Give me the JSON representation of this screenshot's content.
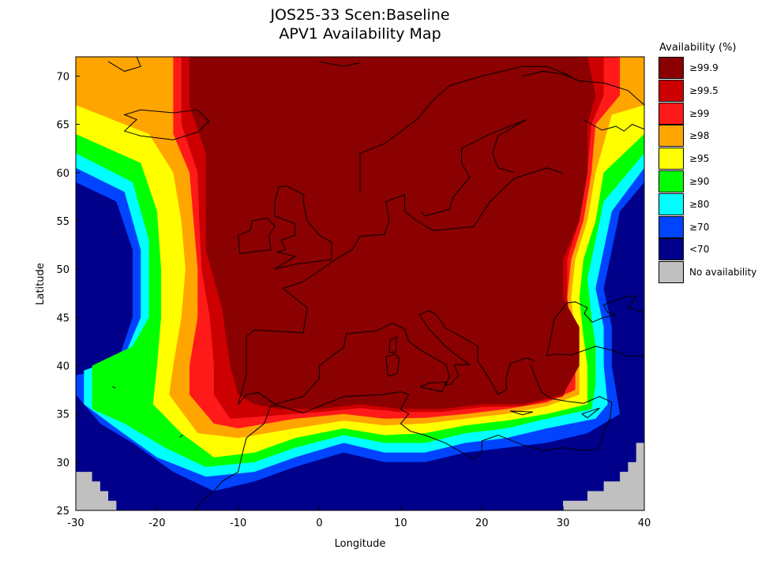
{
  "title_line1": "JOS25-33 Scen:Baseline",
  "title_line2": "APV1 Availability Map",
  "chart_data": {
    "type": "heatmap",
    "xlabel": "Longitude",
    "ylabel": "Latitude",
    "xlim": [
      -30,
      40
    ],
    "ylim": [
      25,
      72
    ],
    "x_ticks": [
      -30,
      -20,
      -10,
      0,
      10,
      20,
      30,
      40
    ],
    "y_ticks": [
      25,
      30,
      35,
      40,
      45,
      50,
      55,
      60,
      65,
      70
    ],
    "legend_title": "Availability (%)",
    "legend_placement": "right",
    "legend": [
      {
        "label": "≥99.9",
        "color": "#8b0000"
      },
      {
        "label": "≥99.5",
        "color": "#cc0000"
      },
      {
        "label": "≥99",
        "color": "#ff1a1a"
      },
      {
        "label": "≥98",
        "color": "#ffa500"
      },
      {
        "label": "≥95",
        "color": "#ffff00"
      },
      {
        "label": "≥90",
        "color": "#00ff00"
      },
      {
        "label": "≥80",
        "color": "#00ffff"
      },
      {
        "label": "≥70",
        "color": "#0044ff"
      },
      {
        "label": "<70",
        "color": "#00008b"
      },
      {
        "label": "No availability",
        "color": "#c0c0c0"
      }
    ],
    "core_region_polygon": [
      [
        -16,
        72
      ],
      [
        -16,
        67
      ],
      [
        -14,
        62
      ],
      [
        -14,
        57
      ],
      [
        -14,
        52
      ],
      [
        -12,
        46
      ],
      [
        -11,
        40
      ],
      [
        -10,
        37
      ],
      [
        -8,
        36
      ],
      [
        -5,
        35.5
      ],
      [
        0,
        35.5
      ],
      [
        5,
        36
      ],
      [
        10,
        35.5
      ],
      [
        15,
        35.5
      ],
      [
        20,
        36
      ],
      [
        25,
        36
      ],
      [
        30,
        37
      ],
      [
        32,
        40
      ],
      [
        32,
        44
      ],
      [
        30,
        47
      ],
      [
        30,
        51
      ],
      [
        32,
        55
      ],
      [
        33,
        60
      ],
      [
        33,
        65
      ],
      [
        34,
        68
      ],
      [
        33,
        72
      ]
    ],
    "contours": [
      {
        "level": "≥70",
        "polygon": [
          [
            -30,
            59
          ],
          [
            -25,
            57
          ],
          [
            -23,
            52
          ],
          [
            -23,
            45
          ],
          [
            -25,
            40
          ],
          [
            -30,
            39
          ],
          [
            -30,
            37
          ],
          [
            -27,
            34
          ],
          [
            -23,
            32
          ],
          [
            -18,
            29
          ],
          [
            -13,
            27
          ],
          [
            -8,
            28
          ],
          [
            -3,
            29.5
          ],
          [
            3,
            31
          ],
          [
            8,
            30
          ],
          [
            13,
            30
          ],
          [
            18,
            31
          ],
          [
            23,
            31.5
          ],
          [
            28,
            32
          ],
          [
            33,
            33
          ],
          [
            37,
            35
          ],
          [
            36,
            40
          ],
          [
            36,
            44
          ],
          [
            35,
            48
          ],
          [
            36,
            52
          ],
          [
            37,
            56
          ],
          [
            40,
            59
          ],
          [
            40,
            72
          ],
          [
            -30,
            72
          ]
        ]
      },
      {
        "level": "≥80",
        "polygon": [
          [
            -30,
            60.5
          ],
          [
            -24,
            58
          ],
          [
            -22,
            52
          ],
          [
            -22,
            45
          ],
          [
            -24,
            41
          ],
          [
            -29,
            39.5
          ],
          [
            -29,
            36
          ],
          [
            -25,
            33.5
          ],
          [
            -20,
            30.5
          ],
          [
            -14,
            28.5
          ],
          [
            -8,
            29
          ],
          [
            -3,
            30.5
          ],
          [
            3,
            32
          ],
          [
            8,
            31
          ],
          [
            13,
            31
          ],
          [
            18,
            32
          ],
          [
            23,
            32.5
          ],
          [
            28,
            33.5
          ],
          [
            34,
            34.5
          ],
          [
            35.5,
            36
          ],
          [
            35,
            40
          ],
          [
            35,
            44
          ],
          [
            34,
            48
          ],
          [
            35,
            52
          ],
          [
            36,
            56
          ],
          [
            40,
            60.5
          ],
          [
            40,
            72
          ],
          [
            -30,
            72
          ]
        ]
      },
      {
        "level": "≥90",
        "polygon": [
          [
            -30,
            62
          ],
          [
            -23,
            59
          ],
          [
            -21,
            53
          ],
          [
            -21,
            45
          ],
          [
            -23,
            42
          ],
          [
            -28,
            40
          ],
          [
            -28,
            35.5
          ],
          [
            -24,
            34
          ],
          [
            -19,
            31.5
          ],
          [
            -14,
            29.5
          ],
          [
            -8,
            30
          ],
          [
            -3,
            31.5
          ],
          [
            3,
            32.8
          ],
          [
            8,
            32
          ],
          [
            13,
            32
          ],
          [
            18,
            33
          ],
          [
            23,
            33.5
          ],
          [
            28,
            34.5
          ],
          [
            33.5,
            35.5
          ],
          [
            34,
            38
          ],
          [
            34,
            42
          ],
          [
            33.5,
            45
          ],
          [
            33,
            49
          ],
          [
            34,
            53
          ],
          [
            35,
            57
          ],
          [
            40,
            62
          ],
          [
            40,
            72
          ],
          [
            -30,
            72
          ]
        ]
      },
      {
        "level": "≥95",
        "polygon": [
          [
            -30,
            64
          ],
          [
            -22,
            61
          ],
          [
            -20,
            56
          ],
          [
            -19.5,
            50
          ],
          [
            -19.5,
            45
          ],
          [
            -20,
            40
          ],
          [
            -20.5,
            36
          ],
          [
            -17,
            33
          ],
          [
            -13,
            30.5
          ],
          [
            -8,
            31
          ],
          [
            -3,
            32.5
          ],
          [
            3,
            33.5
          ],
          [
            8,
            32.8
          ],
          [
            13,
            33
          ],
          [
            18,
            33.8
          ],
          [
            23,
            34.3
          ],
          [
            28,
            35
          ],
          [
            33,
            36
          ],
          [
            33,
            40
          ],
          [
            32.5,
            43
          ],
          [
            32,
            47
          ],
          [
            32.5,
            51
          ],
          [
            34,
            55
          ],
          [
            35,
            60
          ],
          [
            40,
            64
          ],
          [
            40,
            72
          ],
          [
            -30,
            72
          ]
        ]
      },
      {
        "level": "≥98",
        "polygon": [
          [
            -30,
            67
          ],
          [
            -21,
            64
          ],
          [
            -18,
            60
          ],
          [
            -17,
            55
          ],
          [
            -16.5,
            50
          ],
          [
            -17,
            45
          ],
          [
            -18,
            40
          ],
          [
            -18.5,
            37
          ],
          [
            -15,
            33
          ],
          [
            -10,
            32.5
          ],
          [
            -3,
            33.5
          ],
          [
            3,
            34.3
          ],
          [
            8,
            33.8
          ],
          [
            13,
            34
          ],
          [
            18,
            34.5
          ],
          [
            23,
            35
          ],
          [
            28,
            35.8
          ],
          [
            32,
            37
          ],
          [
            32,
            40
          ],
          [
            31.5,
            43
          ],
          [
            31,
            47
          ],
          [
            31.5,
            51
          ],
          [
            33,
            55
          ],
          [
            34,
            60
          ],
          [
            36,
            66
          ],
          [
            40,
            67
          ],
          [
            40,
            72
          ],
          [
            -30,
            72
          ]
        ]
      },
      {
        "level": "≥99",
        "polygon": [
          [
            -18,
            72
          ],
          [
            -18,
            64
          ],
          [
            -16,
            60
          ],
          [
            -15.5,
            55
          ],
          [
            -15,
            50
          ],
          [
            -15,
            45
          ],
          [
            -16,
            40
          ],
          [
            -16,
            37
          ],
          [
            -13,
            34
          ],
          [
            -10,
            33.5
          ],
          [
            -3,
            34.5
          ],
          [
            3,
            35
          ],
          [
            8,
            34.5
          ],
          [
            13,
            34.6
          ],
          [
            18,
            35
          ],
          [
            23,
            35.5
          ],
          [
            28,
            36.2
          ],
          [
            31.5,
            37.5
          ],
          [
            31.5,
            40
          ],
          [
            31,
            43
          ],
          [
            30.5,
            47
          ],
          [
            31,
            51
          ],
          [
            32.5,
            55
          ],
          [
            33.5,
            60
          ],
          [
            34,
            65
          ],
          [
            37,
            68
          ],
          [
            37,
            72
          ]
        ]
      },
      {
        "level": "≥99.5",
        "polygon": [
          [
            -17,
            72
          ],
          [
            -17,
            65
          ],
          [
            -15,
            60
          ],
          [
            -14.8,
            55
          ],
          [
            -14.5,
            50
          ],
          [
            -13.5,
            45
          ],
          [
            -13,
            40
          ],
          [
            -13,
            37
          ],
          [
            -11,
            34.5
          ],
          [
            -6,
            34.8
          ],
          [
            0,
            35.2
          ],
          [
            5,
            35.6
          ],
          [
            10,
            35.2
          ],
          [
            15,
            35.2
          ],
          [
            20,
            35.7
          ],
          [
            25,
            35.8
          ],
          [
            30,
            36.8
          ],
          [
            31.5,
            40
          ],
          [
            31,
            44
          ],
          [
            30.5,
            47
          ],
          [
            30.5,
            51
          ],
          [
            32,
            55
          ],
          [
            33,
            60
          ],
          [
            33.5,
            65
          ],
          [
            35,
            68
          ],
          [
            35,
            72
          ]
        ]
      }
    ],
    "no_availability_regions": [
      [
        [
          -30,
          25
        ],
        [
          -30,
          29
        ],
        [
          -28,
          29
        ],
        [
          -28,
          28
        ],
        [
          -27,
          28
        ],
        [
          -27,
          27
        ],
        [
          -26,
          27
        ],
        [
          -26,
          26
        ],
        [
          -25,
          26
        ],
        [
          -25,
          25
        ]
      ],
      [
        [
          30,
          25
        ],
        [
          30,
          26
        ],
        [
          33,
          26
        ],
        [
          33,
          27
        ],
        [
          35,
          27
        ],
        [
          35,
          28
        ],
        [
          37,
          28
        ],
        [
          37,
          29
        ],
        [
          38,
          29
        ],
        [
          38,
          30
        ],
        [
          39,
          30
        ],
        [
          39,
          32
        ],
        [
          40,
          32
        ],
        [
          40,
          25
        ]
      ]
    ]
  }
}
